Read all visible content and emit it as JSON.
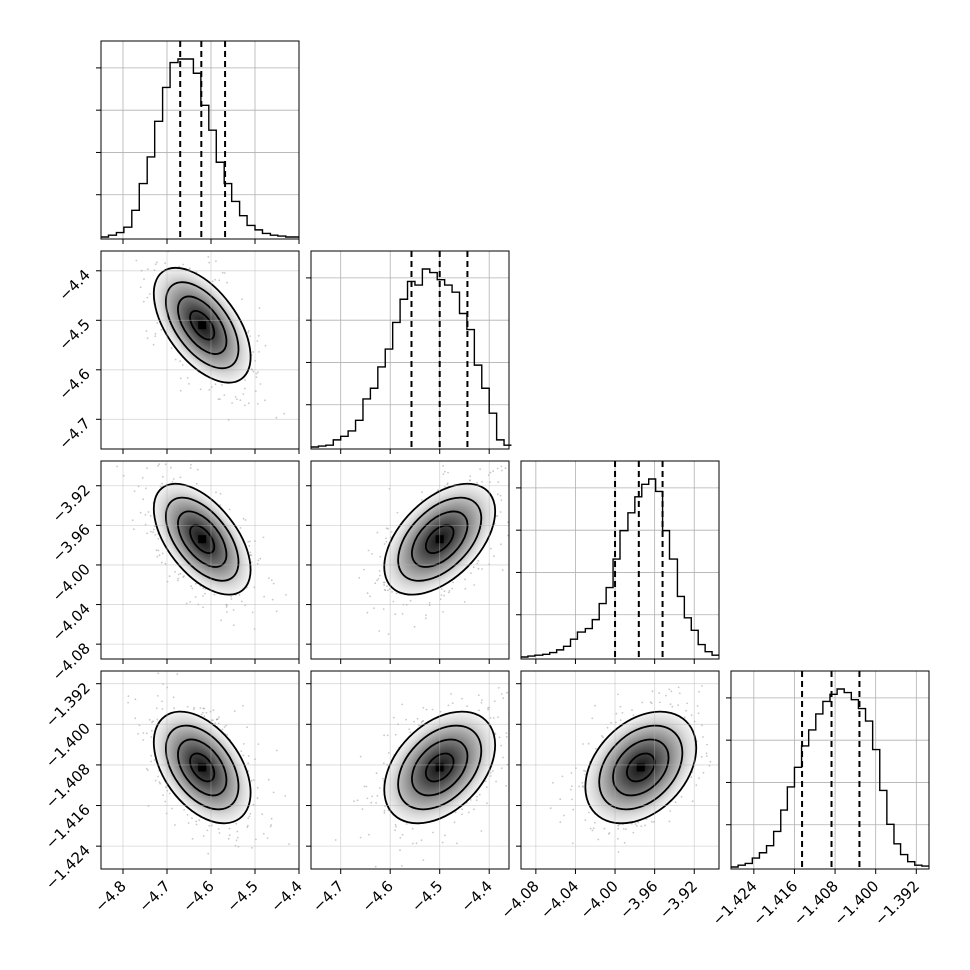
{
  "chart_data": {
    "type": "corner",
    "grid": true,
    "parameters": [
      {
        "range": [
          -4.85,
          -4.4
        ],
        "ticks": [
          -4.8,
          -4.7,
          -4.6,
          -4.5,
          -4.4
        ],
        "tick_labels": [
          "−4.8",
          "−4.7",
          "−4.6",
          "−4.5",
          "−4.4"
        ],
        "quantiles": [
          -4.67,
          -4.622,
          -4.568
        ],
        "hist_bins": [
          -4.85,
          -4.833,
          -4.815,
          -4.798,
          -4.78,
          -4.763,
          -4.745,
          -4.728,
          -4.71,
          -4.693,
          -4.675,
          -4.658,
          -4.64,
          -4.623,
          -4.605,
          -4.588,
          -4.57,
          -4.553,
          -4.535,
          -4.518,
          -4.5,
          -4.483,
          -4.465,
          -4.448,
          -4.43,
          -4.413,
          -4.4
        ],
        "hist_counts": [
          0,
          0.01,
          0.025,
          0.055,
          0.15,
          0.3,
          0.45,
          0.65,
          0.84,
          0.98,
          1.0,
          1.0,
          0.92,
          0.74,
          0.6,
          0.42,
          0.3,
          0.2,
          0.12,
          0.065,
          0.04,
          0.02,
          0.01,
          0.005,
          0,
          0
        ]
      },
      {
        "range": [
          -4.76,
          -4.36
        ],
        "ticks": [
          -4.7,
          -4.6,
          -4.5,
          -4.4
        ],
        "tick_labels": [
          "−4.7",
          "−4.6",
          "−4.5",
          "−4.4"
        ],
        "quantiles": [
          -4.557,
          -4.5,
          -4.444
        ],
        "hist_bins": [
          -4.76,
          -4.745,
          -4.73,
          -4.715,
          -4.7,
          -4.685,
          -4.67,
          -4.655,
          -4.64,
          -4.625,
          -4.61,
          -4.595,
          -4.58,
          -4.565,
          -4.55,
          -4.535,
          -4.52,
          -4.505,
          -4.49,
          -4.475,
          -4.46,
          -4.445,
          -4.43,
          -4.415,
          -4.4,
          -4.385,
          -4.37,
          -4.355
        ],
        "hist_counts": [
          0,
          0.005,
          0.01,
          0.04,
          0.06,
          0.09,
          0.15,
          0.27,
          0.33,
          0.45,
          0.55,
          0.7,
          0.83,
          0.93,
          0.91,
          1.0,
          0.98,
          0.94,
          0.91,
          0.87,
          0.75,
          0.66,
          0.46,
          0.33,
          0.19,
          0.04,
          0.01
        ]
      },
      {
        "range": [
          -4.095,
          -3.895
        ],
        "ticks": [
          -4.08,
          -4.04,
          -4.0,
          -3.96,
          -3.92
        ],
        "tick_labels": [
          "−4.08",
          "−4.04",
          "−4.00",
          "−3.96",
          "−3.92"
        ],
        "quantiles": [
          -4.0,
          -3.976,
          -3.952
        ],
        "hist_bins": [
          -4.095,
          -4.088,
          -4.081,
          -4.073,
          -4.066,
          -4.059,
          -4.052,
          -4.045,
          -4.038,
          -4.03,
          -4.023,
          -4.016,
          -4.009,
          -4.002,
          -3.995,
          -3.987,
          -3.98,
          -3.973,
          -3.966,
          -3.959,
          -3.952,
          -3.945,
          -3.937,
          -3.93,
          -3.923,
          -3.916,
          -3.909,
          -3.902,
          -3.895
        ],
        "hist_counts": [
          0,
          0.005,
          0.01,
          0.015,
          0.025,
          0.04,
          0.06,
          0.1,
          0.14,
          0.16,
          0.21,
          0.3,
          0.39,
          0.55,
          0.71,
          0.81,
          0.9,
          0.97,
          1.0,
          0.93,
          0.71,
          0.55,
          0.34,
          0.22,
          0.15,
          0.07,
          0.03,
          0.01
        ]
      },
      {
        "range": [
          -1.4285,
          -1.3895
        ],
        "ticks": [
          -1.424,
          -1.416,
          -1.408,
          -1.4,
          -1.392
        ],
        "tick_labels": [
          "−1.424",
          "−1.416",
          "−1.408",
          "−1.400",
          "−1.392"
        ],
        "quantiles": [
          -1.4145,
          -1.4087,
          -1.4032
        ],
        "hist_bins": [
          -1.4285,
          -1.4271,
          -1.4257,
          -1.4243,
          -1.4229,
          -1.4215,
          -1.4201,
          -1.4187,
          -1.4174,
          -1.416,
          -1.4146,
          -1.4132,
          -1.4118,
          -1.4104,
          -1.409,
          -1.4076,
          -1.4062,
          -1.4048,
          -1.4034,
          -1.402,
          -1.4006,
          -1.3992,
          -1.3978,
          -1.3964,
          -1.3951,
          -1.3937,
          -1.3923,
          -1.3909,
          -1.3895
        ],
        "hist_counts": [
          0,
          0.01,
          0.02,
          0.05,
          0.08,
          0.12,
          0.2,
          0.32,
          0.45,
          0.56,
          0.68,
          0.77,
          0.86,
          0.93,
          0.97,
          1.0,
          0.98,
          0.94,
          0.89,
          0.82,
          0.66,
          0.43,
          0.24,
          0.13,
          0.07,
          0.03,
          0.01,
          0.005
        ]
      }
    ],
    "pairs": [
      {
        "row": 1,
        "col": 0,
        "mean": [
          -4.62,
          -4.51
        ],
        "sd": [
          0.055,
          0.058
        ],
        "rho": -0.55
      },
      {
        "row": 2,
        "col": 0,
        "mean": [
          -4.62,
          -3.974
        ],
        "sd": [
          0.055,
          0.028
        ],
        "rho": -0.55
      },
      {
        "row": 2,
        "col": 1,
        "mean": [
          -4.5,
          -3.974
        ],
        "sd": [
          0.056,
          0.028
        ],
        "rho": 0.5
      },
      {
        "row": 3,
        "col": 0,
        "mean": [
          -4.62,
          -1.4085
        ],
        "sd": [
          0.055,
          0.0055
        ],
        "rho": -0.45
      },
      {
        "row": 3,
        "col": 1,
        "mean": [
          -4.5,
          -1.4085
        ],
        "sd": [
          0.056,
          0.0055
        ],
        "rho": 0.4
      },
      {
        "row": 3,
        "col": 2,
        "mean": [
          -3.974,
          -1.4085
        ],
        "sd": [
          0.028,
          0.0055
        ],
        "rho": 0.35
      }
    ],
    "contour_levels_sigma": [
      0.5,
      1.0,
      1.5,
      2.0
    ]
  }
}
